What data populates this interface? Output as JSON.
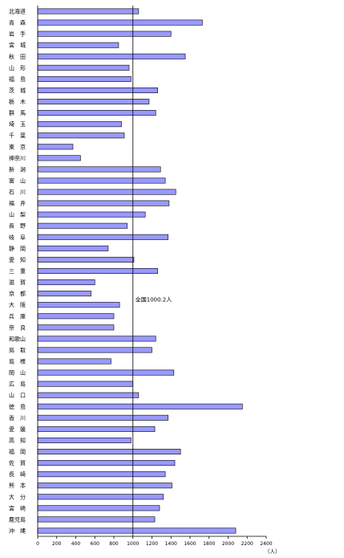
{
  "chart_data": {
    "type": "bar",
    "orientation": "horizontal",
    "categories": [
      "北海道",
      "青　森",
      "岩　手",
      "宮　城",
      "秋　田",
      "山　形",
      "福　島",
      "茨　城",
      "栃　木",
      "群　馬",
      "埼　玉",
      "千　葉",
      "東　京",
      "神奈川",
      "新　潟",
      "富　山",
      "石　川",
      "福　井",
      "山　梨",
      "長　野",
      "岐　阜",
      "静　岡",
      "愛　知",
      "三　重",
      "滋　賀",
      "京　都",
      "大　阪",
      "兵　庫",
      "奈　良",
      "和歌山",
      "鳥　取",
      "島　根",
      "岡　山",
      "広　島",
      "山　口",
      "徳　島",
      "香　川",
      "愛　媛",
      "高　知",
      "福　岡",
      "佐　賀",
      "長　崎",
      "熊　本",
      "大　分",
      "宮　崎",
      "鹿児島",
      "沖　縄"
    ],
    "values": [
      1060,
      1730,
      1400,
      850,
      1550,
      960,
      980,
      1260,
      1170,
      1240,
      880,
      910,
      370,
      450,
      1290,
      1340,
      1450,
      1380,
      1130,
      940,
      1370,
      740,
      1010,
      1260,
      600,
      560,
      860,
      800,
      800,
      1240,
      1200,
      770,
      1430,
      1000,
      1060,
      2150,
      1370,
      1230,
      980,
      1500,
      1440,
      1340,
      1410,
      1320,
      1280,
      1230,
      2080
    ],
    "xlim": [
      0,
      2400
    ],
    "xticks": [
      "0",
      "200",
      "400",
      "600",
      "800",
      "1000",
      "1200",
      "1400",
      "1600",
      "1800",
      "2000",
      "2200",
      "2400"
    ],
    "xunit": "（人）",
    "reference_line": {
      "value": 1000.2,
      "label": "全国1000.2人"
    },
    "bar_color": "#9999ff"
  }
}
